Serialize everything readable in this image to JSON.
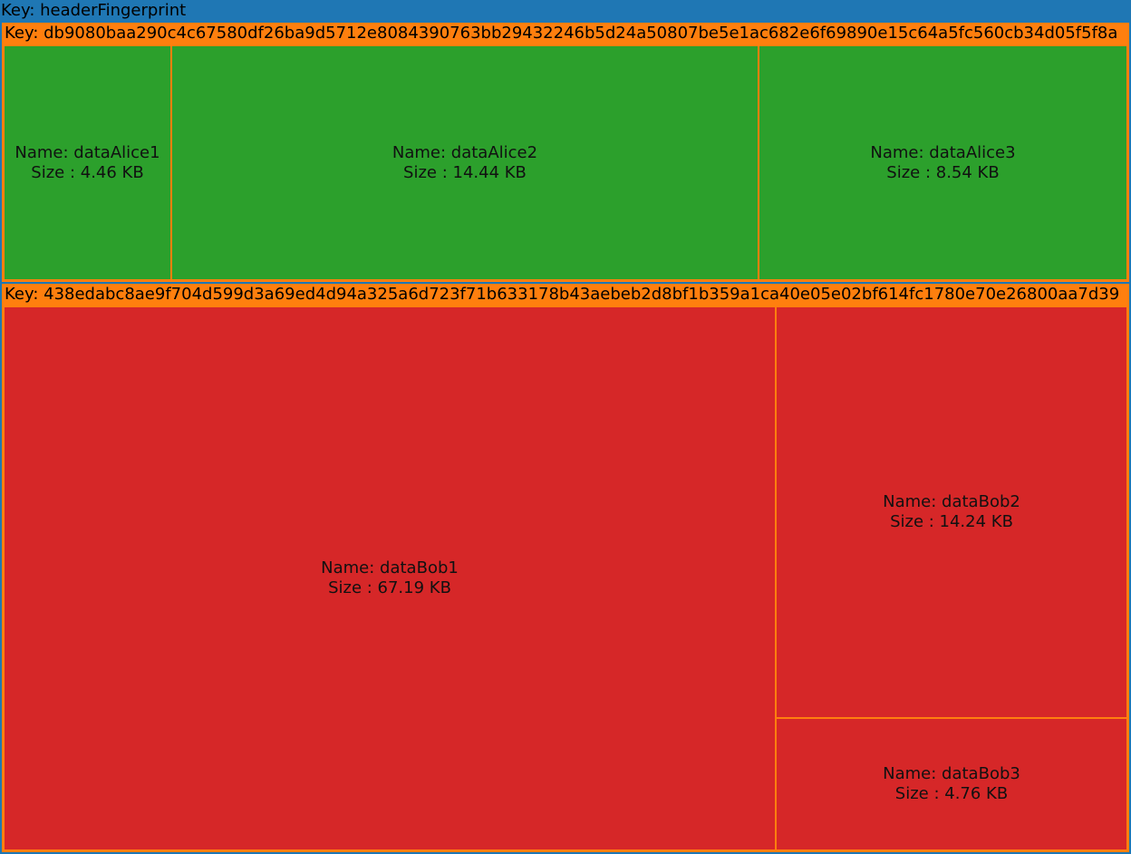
{
  "root": {
    "key_label": "Key: headerFingerprint"
  },
  "colors": {
    "background": "#1f77b4",
    "group_border": "#ff7f0e",
    "alice_fill": "#2ca02c",
    "bob_fill": "#d62728"
  },
  "groups": [
    {
      "key_label": "Key: db9080baa290c4c67580df26ba9d5712e8084390763bb29432246b5d24a50807be5e1ac682e6f69890e15c64a5fc560cb34d05f5f8a",
      "items": [
        {
          "name": "Name: dataAlice1",
          "size": "Size : 4.46 KB",
          "value_kb": 4.46
        },
        {
          "name": "Name: dataAlice2",
          "size": "Size : 14.44 KB",
          "value_kb": 14.44
        },
        {
          "name": "Name: dataAlice3",
          "size": "Size : 8.54 KB",
          "value_kb": 8.54
        }
      ]
    },
    {
      "key_label": "Key: 438edabc8ae9f704d599d3a69ed4d94a325a6d723f71b633178b43aebeb2d8bf1b359a1ca40e05e02bf614fc1780e70e26800aa7d39",
      "items": [
        {
          "name": "Name: dataBob1",
          "size": "Size : 67.19 KB",
          "value_kb": 67.19
        },
        {
          "name": "Name: dataBob2",
          "size": "Size : 14.24 KB",
          "value_kb": 14.24
        },
        {
          "name": "Name: dataBob3",
          "size": "Size : 4.76 KB",
          "value_kb": 4.76
        }
      ]
    }
  ]
}
